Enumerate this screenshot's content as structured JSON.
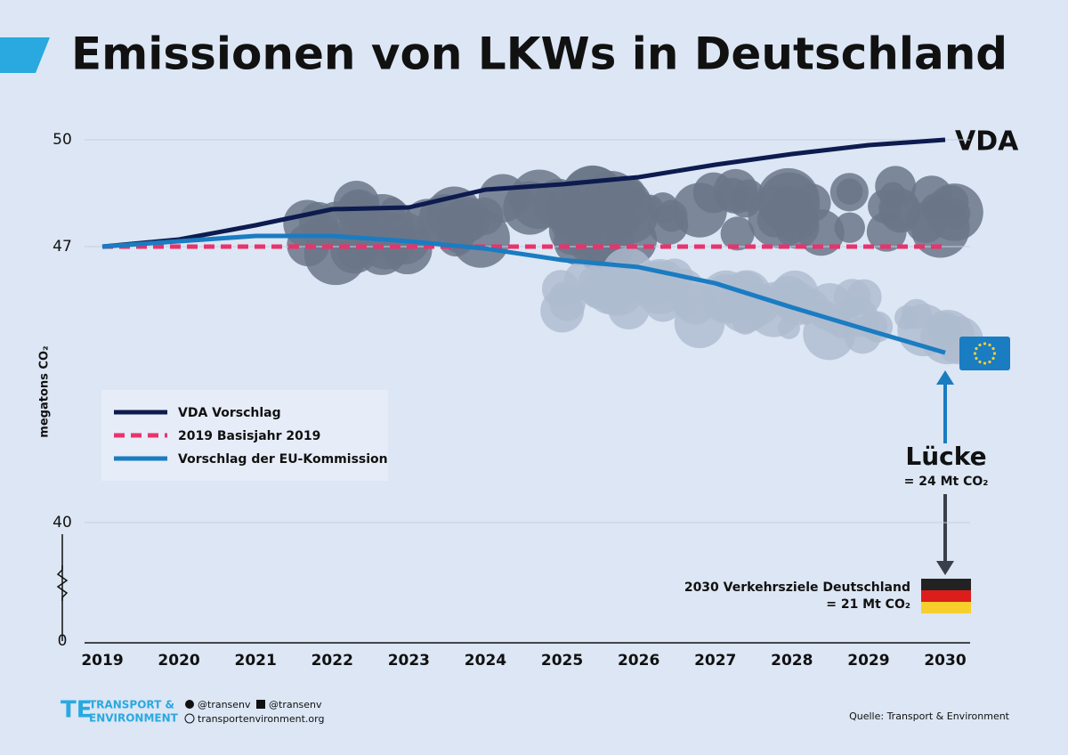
{
  "chart_data": {
    "type": "line",
    "title": "Emissionen von LKWs in Deutschland",
    "y_label": "megatons CO₂",
    "categories": [
      "2019",
      "2020",
      "2021",
      "2022",
      "2023",
      "2024",
      "2025",
      "2026",
      "2027",
      "2028",
      "2029",
      "2030"
    ],
    "series": [
      {
        "name": "VDA Vorschlag",
        "color": "#0d1b4f",
        "values": [
          47,
          47.2,
          47.6,
          48.05,
          48.1,
          48.6,
          48.75,
          48.95,
          49.3,
          49.6,
          49.85,
          50
        ]
      },
      {
        "name": "2019 Basisjahr 2019",
        "color": "#e8336d",
        "dashed": true,
        "values": [
          47,
          47,
          47,
          47,
          47,
          47,
          47,
          47,
          47,
          47,
          47,
          47
        ]
      },
      {
        "name": "Vorschlag der EU-Kommission",
        "color": "#1a7cc1",
        "values": [
          47,
          47.15,
          47.3,
          47.3,
          47.15,
          46.95,
          46.66,
          46.48,
          46.07,
          45.46,
          44.88,
          44.31
        ]
      }
    ],
    "ylim": [
      0,
      50
    ],
    "yticks": [
      0,
      40,
      47,
      50
    ],
    "axis_break": true,
    "grid": true,
    "end_label": "VDA",
    "gap_title": "Lücke",
    "gap_value": "= 24 Mt CO₂",
    "target_title": "2030 Verkehrsziele Deutschland",
    "target_value": "= 21 Mt CO₂",
    "footer": {
      "logo_line1": "TRANSPORT &",
      "logo_line2": "ENVIRONMENT",
      "twitter": "@transenv",
      "facebook": "@transenv",
      "website": "transportenvironment.org",
      "source": "Quelle: Transport & Environment"
    }
  }
}
